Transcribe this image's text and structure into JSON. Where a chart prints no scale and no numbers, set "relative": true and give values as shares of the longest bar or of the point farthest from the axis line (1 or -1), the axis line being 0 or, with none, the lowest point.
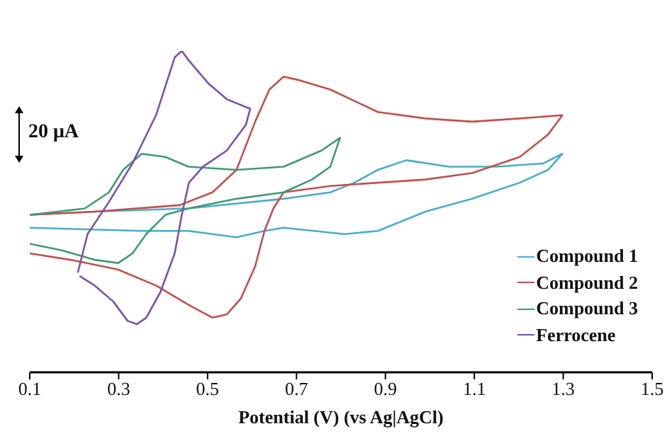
{
  "chart_data": {
    "type": "line",
    "relative": true,
    "xlabel": "Potential (V) (vs Ag|AgCl)",
    "xlim": [
      0.1,
      1.5
    ],
    "xticks": [
      0.1,
      0.3,
      0.5,
      0.7,
      0.9,
      1.1,
      1.3,
      1.5
    ],
    "legend": "bottom right",
    "grid": false,
    "marker": "none",
    "line_style": "solid",
    "annotations": [
      "20 μA"
    ],
    "series": [
      {
        "name": "Compound 1",
        "color": "#4bacc6",
        "x": [
          0.1,
          0.352,
          0.457,
          0.565,
          0.628,
          0.671,
          0.808,
          0.883,
          0.99,
          1.095,
          1.202,
          1.266,
          1.298,
          1.255,
          1.149,
          1.043,
          0.947,
          0.883,
          0.83,
          0.776,
          0.671,
          0.457,
          0.246,
          0.1
        ],
        "values": [
          0.45,
          0.44,
          0.44,
          0.42,
          0.44,
          0.45,
          0.43,
          0.44,
          0.5,
          0.54,
          0.59,
          0.63,
          0.68,
          0.65,
          0.64,
          0.64,
          0.66,
          0.63,
          0.59,
          0.56,
          0.54,
          0.51,
          0.5,
          0.49
        ]
      },
      {
        "name": "Compound 2",
        "color": "#c0504d",
        "x": [
          0.1,
          0.246,
          0.437,
          0.511,
          0.565,
          0.607,
          0.639,
          0.671,
          0.703,
          0.776,
          0.883,
          0.99,
          1.095,
          1.202,
          1.298,
          1.266,
          1.202,
          1.095,
          0.99,
          0.883,
          0.776,
          0.671,
          0.648,
          0.628,
          0.607,
          0.575,
          0.543,
          0.511,
          0.457,
          0.384,
          0.298,
          0.192,
          0.1
        ],
        "values": [
          0.49,
          0.5,
          0.52,
          0.56,
          0.63,
          0.78,
          0.88,
          0.92,
          0.91,
          0.88,
          0.81,
          0.79,
          0.78,
          0.79,
          0.8,
          0.74,
          0.67,
          0.62,
          0.6,
          0.59,
          0.58,
          0.56,
          0.51,
          0.44,
          0.33,
          0.23,
          0.18,
          0.17,
          0.21,
          0.27,
          0.32,
          0.35,
          0.37
        ]
      },
      {
        "name": "Compound 3",
        "color": "#3f9a72",
        "x": [
          0.1,
          0.224,
          0.278,
          0.31,
          0.352,
          0.405,
          0.457,
          0.565,
          0.671,
          0.756,
          0.798,
          0.776,
          0.735,
          0.671,
          0.565,
          0.457,
          0.405,
          0.362,
          0.331,
          0.299,
          0.246,
          0.171,
          0.1
        ],
        "values": [
          0.49,
          0.51,
          0.56,
          0.63,
          0.68,
          0.67,
          0.64,
          0.63,
          0.64,
          0.69,
          0.73,
          0.64,
          0.6,
          0.56,
          0.54,
          0.51,
          0.49,
          0.43,
          0.37,
          0.34,
          0.35,
          0.38,
          0.4
        ]
      },
      {
        "name": "Ferrocene",
        "color": "#7a52a6",
        "x": [
          0.208,
          0.23,
          0.278,
          0.331,
          0.384,
          0.426,
          0.442,
          0.458,
          0.501,
          0.543,
          0.596,
          0.586,
          0.543,
          0.49,
          0.458,
          0.442,
          0.426,
          0.394,
          0.362,
          0.341,
          0.32,
          0.288,
          0.246,
          0.212
        ],
        "values": [
          0.31,
          0.43,
          0.53,
          0.65,
          0.8,
          0.98,
          1,
          0.97,
          0.9,
          0.85,
          0.82,
          0.77,
          0.69,
          0.64,
          0.59,
          0.49,
          0.37,
          0.25,
          0.17,
          0.15,
          0.16,
          0.22,
          0.27,
          0.3
        ]
      }
    ]
  }
}
